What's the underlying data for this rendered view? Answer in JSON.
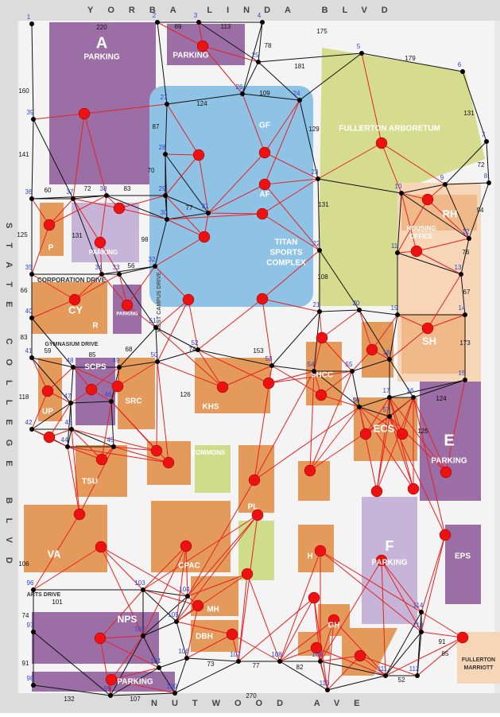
{
  "streets": {
    "north": "YORBA LINDA BLVD",
    "south": "NUTWOOD AVE",
    "west": "STATE COLLEGE BLVD"
  },
  "places": [
    "A",
    "PARKING",
    "PARKING",
    "GF",
    "AF",
    "TITAN",
    "SPORTS",
    "COMPLEX",
    "FULLERTON ARBORETUM",
    "RH",
    "HOUSING",
    "OFFICE",
    "SH",
    "E",
    "PARKING",
    "EPS",
    "F",
    "PARKING",
    "ECS",
    "SHCC",
    "KHS",
    "SRC",
    "SCPS",
    "UP",
    "CY",
    "R",
    "PARKING",
    "CORPORATION DRIVE",
    "GYMNASIUM DRIVE",
    "TSU",
    "COMMONS",
    "PL",
    "VA",
    "CPAC",
    "H",
    "MH",
    "DBH",
    "GH",
    "NPS",
    "PARKING",
    "ARTS DRIVE",
    "FULLERTON",
    "MARRIOTT",
    "WEST CAMPUS DRIVE",
    "P",
    "PARKING"
  ],
  "node_ids": [
    1,
    2,
    3,
    4,
    5,
    6,
    7,
    8,
    9,
    10,
    11,
    12,
    13,
    14,
    15,
    16,
    17,
    18,
    19,
    20,
    21,
    22,
    23,
    24,
    25,
    26,
    27,
    28,
    29,
    30,
    31,
    32,
    33,
    34,
    35,
    36,
    37,
    38,
    39,
    40,
    41,
    42,
    43,
    44,
    45,
    46,
    47,
    48,
    49,
    50,
    51,
    52,
    53,
    54,
    55,
    56,
    57,
    96,
    97,
    98,
    99,
    100,
    101,
    102,
    103,
    104,
    105,
    106,
    107,
    108,
    109,
    110,
    111,
    112,
    113,
    114
  ],
  "edge_weights": [
    220,
    69,
    113,
    175,
    78,
    181,
    179,
    131,
    160,
    141,
    124,
    109,
    129,
    87,
    70,
    131,
    108,
    72,
    94,
    76,
    67,
    173,
    124,
    125,
    60,
    72,
    83,
    77,
    125,
    131,
    98,
    56,
    66,
    83,
    118,
    59,
    85,
    68,
    74,
    153,
    126,
    106,
    101,
    74,
    91,
    132,
    107,
    270,
    73,
    77,
    82,
    52,
    85,
    91
  ]
}
